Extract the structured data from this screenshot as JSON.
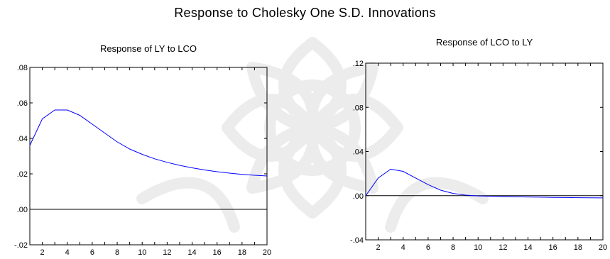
{
  "page_title": "Response to Cholesky One S.D. Innovations",
  "colors": {
    "response_line": "#0000ff",
    "zero_line": "#000000",
    "frame": "#000000",
    "watermark": "#d8d8d8"
  },
  "chart_data": [
    {
      "type": "line",
      "title": "Response of LY to LCO",
      "xlabel": "",
      "ylabel": "",
      "x": [
        1,
        2,
        3,
        4,
        5,
        6,
        7,
        8,
        9,
        10,
        11,
        12,
        13,
        14,
        15,
        16,
        17,
        18,
        19,
        20
      ],
      "series": [
        {
          "values": [
            0.036,
            0.051,
            0.056,
            0.056,
            0.053,
            0.048,
            0.043,
            0.038,
            0.034,
            0.031,
            0.0285,
            0.0265,
            0.0248,
            0.0234,
            0.0222,
            0.0212,
            0.0204,
            0.0197,
            0.0192,
            0.0188
          ]
        }
      ],
      "xlim": [
        1,
        20
      ],
      "ylim": [
        -0.02,
        0.08
      ],
      "x_ticks": [
        "2",
        "4",
        "6",
        "8",
        "10",
        "12",
        "14",
        "16",
        "18",
        "20"
      ],
      "y_ticks": [
        {
          "value": 0.08,
          "label": ".08"
        },
        {
          "value": 0.06,
          "label": ".06"
        },
        {
          "value": 0.04,
          "label": ".04"
        },
        {
          "value": 0.02,
          "label": ".02"
        },
        {
          "value": 0.0,
          "label": ".00"
        },
        {
          "value": -0.02,
          "label": "-.02"
        }
      ],
      "zero_line": true,
      "grid": false
    },
    {
      "type": "line",
      "title": "Response of LCO to LY",
      "xlabel": "",
      "ylabel": "",
      "x": [
        1,
        2,
        3,
        4,
        5,
        6,
        7,
        8,
        9,
        10,
        11,
        12,
        13,
        14,
        15,
        16,
        17,
        18,
        19,
        20
      ],
      "series": [
        {
          "values": [
            0.0,
            0.016,
            0.024,
            0.022,
            0.016,
            0.01,
            0.005,
            0.002,
            0.0005,
            -0.0002,
            -0.0005,
            -0.0008,
            -0.001,
            -0.0012,
            -0.0014,
            -0.0016,
            -0.0017,
            -0.0018,
            -0.0019,
            -0.002
          ]
        }
      ],
      "xlim": [
        1,
        20
      ],
      "ylim": [
        -0.04,
        0.12
      ],
      "x_ticks": [
        "2",
        "4",
        "6",
        "8",
        "10",
        "12",
        "14",
        "16",
        "18",
        "20"
      ],
      "y_ticks": [
        {
          "value": 0.12,
          "label": ".12"
        },
        {
          "value": 0.08,
          "label": ".08"
        },
        {
          "value": 0.04,
          "label": ".04"
        },
        {
          "value": 0.0,
          "label": ".00"
        },
        {
          "value": -0.04,
          "label": "-.04"
        }
      ],
      "zero_line": true,
      "grid": false
    }
  ]
}
